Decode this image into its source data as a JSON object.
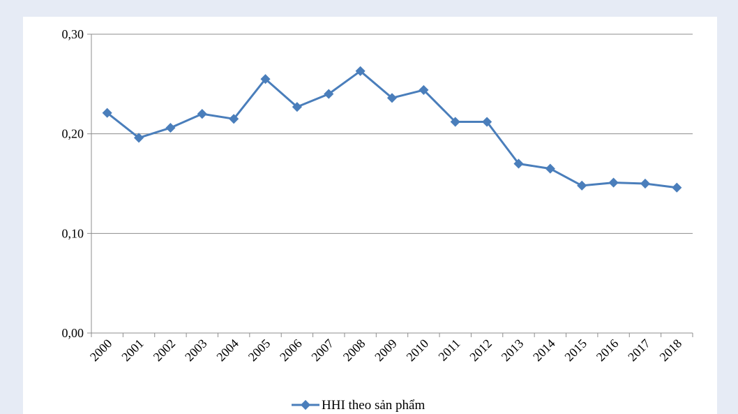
{
  "chart_data": {
    "type": "line",
    "title": "",
    "xlabel": "",
    "ylabel": "",
    "categories": [
      "2000",
      "2001",
      "2002",
      "2003",
      "2004",
      "2005",
      "2006",
      "2007",
      "2008",
      "2009",
      "2010",
      "2011",
      "2012",
      "2013",
      "2014",
      "2015",
      "2016",
      "2017",
      "2018"
    ],
    "series": [
      {
        "name": "HHI theo sản phẩm",
        "values": [
          0.221,
          0.196,
          0.206,
          0.22,
          0.215,
          0.255,
          0.227,
          0.24,
          0.263,
          0.236,
          0.244,
          0.212,
          0.212,
          0.17,
          0.165,
          0.148,
          0.151,
          0.15,
          0.146
        ],
        "color": "#4a7ebb"
      }
    ],
    "ylim": [
      0,
      0.3
    ],
    "yticks": [
      0,
      0.1,
      0.2,
      0.3
    ],
    "ytick_labels": [
      "0,00",
      "0,10",
      "0,20",
      "0,30"
    ],
    "grid": true,
    "legend_position": "bottom"
  }
}
